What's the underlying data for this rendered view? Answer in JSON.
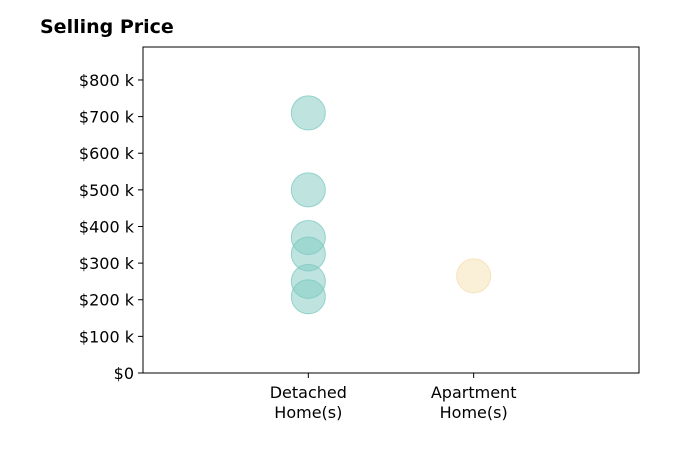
{
  "chart_data": {
    "type": "scatter",
    "title": "Selling Price",
    "xlabel": "",
    "ylabel": "",
    "categories": [
      "Detached\nHome(s)",
      "Apartment\nHome(s)"
    ],
    "ylim": [
      0,
      890
    ],
    "yticks": [
      0,
      100,
      200,
      300,
      400,
      500,
      600,
      700,
      800
    ],
    "ytick_labels": [
      "$0",
      "$100 k",
      "$200 k",
      "$300 k",
      "$400 k",
      "$500 k",
      "$600 k",
      "$700 k",
      "$800 k"
    ],
    "grid": false,
    "series": [
      {
        "category": "Detached\nHome(s)",
        "color": "#7fc9c2",
        "values": [
          710,
          500,
          370,
          325,
          250,
          208
        ]
      },
      {
        "category": "Apartment\nHome(s)",
        "color": "#f5dfb0",
        "values": [
          265
        ]
      }
    ]
  }
}
